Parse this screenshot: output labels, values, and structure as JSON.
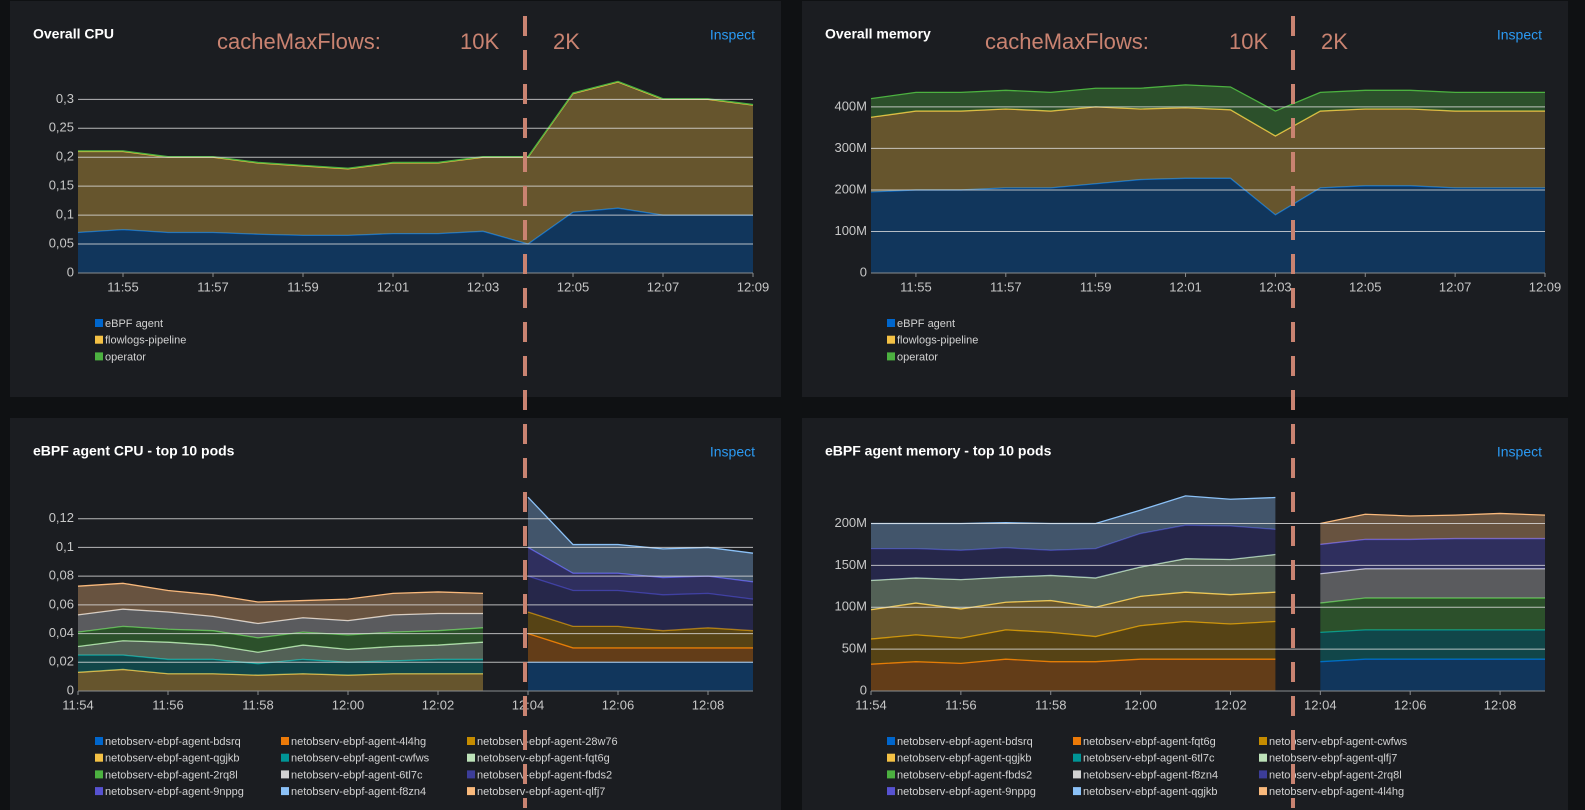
{
  "chart_data": [
    {
      "type": "area",
      "stacked": true,
      "grid": true,
      "title": "Overall CPU",
      "link": "Inspect",
      "annotation": {
        "label": "cacheMaxFlows:",
        "before": "10K",
        "after": "2K"
      },
      "x": [
        "11:54",
        "11:55",
        "11:56",
        "11:57",
        "11:58",
        "11:59",
        "12:00",
        "12:01",
        "12:02",
        "12:03",
        "12:04",
        "12:05",
        "12:06",
        "12:07",
        "12:08",
        "12:09"
      ],
      "xticks": [
        "11:55",
        "11:57",
        "11:59",
        "12:01",
        "12:03",
        "12:05",
        "12:07",
        "12:09"
      ],
      "ylim": [
        0,
        0.33
      ],
      "yticks": [
        0,
        {
          "value": 0.05,
          "label": "0,05"
        },
        {
          "value": 0.1,
          "label": "0,1"
        },
        {
          "value": 0.15,
          "label": "0,15"
        },
        {
          "value": 0.2,
          "label": "0,2"
        },
        {
          "value": 0.25,
          "label": "0,25"
        },
        {
          "value": 0.3,
          "label": "0,3"
        }
      ],
      "series": [
        {
          "name": "eBPF agent",
          "color": "#0066cc",
          "values": [
            0.07,
            0.075,
            0.07,
            0.07,
            0.067,
            0.065,
            0.065,
            0.068,
            0.068,
            0.072,
            0.05,
            0.105,
            0.112,
            0.1,
            0.1,
            0.1
          ]
        },
        {
          "name": "flowlogs-pipeline",
          "color": "#f4c145",
          "values": [
            0.14,
            0.135,
            0.13,
            0.13,
            0.123,
            0.12,
            0.115,
            0.122,
            0.122,
            0.128,
            0.15,
            0.205,
            0.218,
            0.2,
            0.2,
            0.19
          ]
        },
        {
          "name": "operator",
          "color": "#4cb140",
          "values": [
            0.001,
            0.001,
            0.001,
            0.001,
            0.001,
            0.001,
            0.001,
            0.001,
            0.001,
            0.001,
            0.001,
            0.001,
            0.001,
            0.001,
            0.001,
            0.001
          ]
        }
      ]
    },
    {
      "type": "area",
      "stacked": true,
      "grid": true,
      "title": "Overall memory",
      "link": "Inspect",
      "annotation": {
        "label": "cacheMaxFlows:",
        "before": "10K",
        "after": "2K"
      },
      "x": [
        "11:54",
        "11:55",
        "11:56",
        "11:57",
        "11:58",
        "11:59",
        "12:00",
        "12:01",
        "12:02",
        "12:03",
        "12:04",
        "12:05",
        "12:06",
        "12:07",
        "12:08",
        "12:09"
      ],
      "xticks": [
        "11:55",
        "11:57",
        "11:59",
        "12:01",
        "12:03",
        "12:05",
        "12:07",
        "12:09"
      ],
      "ylim": [
        0,
        460000000
      ],
      "yticks": [
        0,
        {
          "value": 100000000,
          "label": "100M"
        },
        {
          "value": 200000000,
          "label": "200M"
        },
        {
          "value": 300000000,
          "label": "300M"
        },
        {
          "value": 400000000,
          "label": "400M"
        }
      ],
      "series": [
        {
          "name": "eBPF agent",
          "color": "#0066cc",
          "values": [
            195000000,
            200000000,
            200000000,
            205000000,
            205000000,
            215000000,
            225000000,
            228000000,
            228000000,
            140000000,
            205000000,
            210000000,
            210000000,
            205000000,
            205000000,
            205000000
          ]
        },
        {
          "name": "flowlogs-pipeline",
          "color": "#f4c145",
          "values": [
            180000000,
            190000000,
            190000000,
            190000000,
            185000000,
            185000000,
            170000000,
            170000000,
            165000000,
            190000000,
            185000000,
            185000000,
            185000000,
            185000000,
            185000000,
            185000000
          ]
        },
        {
          "name": "operator",
          "color": "#4cb140",
          "values": [
            45000000,
            45000000,
            45000000,
            45000000,
            45000000,
            45000000,
            50000000,
            55000000,
            55000000,
            60000000,
            45000000,
            45000000,
            45000000,
            45000000,
            45000000,
            45000000
          ]
        }
      ]
    },
    {
      "type": "area",
      "stacked": true,
      "grid": true,
      "title": "eBPF agent CPU - top 10 pods",
      "link": "Inspect",
      "x": [
        "11:54",
        "11:55",
        "11:56",
        "11:57",
        "11:58",
        "11:59",
        "12:00",
        "12:01",
        "12:02",
        "12:03",
        "12:04",
        "12:05",
        "12:06",
        "12:07",
        "12:08",
        "12:09"
      ],
      "xticks": [
        "11:54",
        "11:56",
        "11:58",
        "12:00",
        "12:02",
        "12:04",
        "12:06",
        "12:08"
      ],
      "ylim": [
        0,
        0.14
      ],
      "yticks": [
        0,
        {
          "value": 0.02,
          "label": "0,02"
        },
        {
          "value": 0.04,
          "label": "0,04"
        },
        {
          "value": 0.06,
          "label": "0,06"
        },
        {
          "value": 0.08,
          "label": "0,08"
        },
        {
          "value": 0.1,
          "label": "0,1"
        },
        {
          "value": 0.12,
          "label": "0,12"
        }
      ],
      "series": [
        {
          "name": "netobserv-ebpf-agent-bdsrq",
          "color": "#0066cc",
          "values": [
            null,
            null,
            null,
            null,
            null,
            null,
            null,
            null,
            null,
            null,
            0.02,
            0.02,
            0.02,
            0.02,
            0.02,
            0.02
          ]
        },
        {
          "name": "netobserv-ebpf-agent-4l4hg",
          "color": "#ec7a08",
          "values": [
            null,
            null,
            null,
            null,
            null,
            null,
            null,
            null,
            null,
            null,
            0.02,
            0.01,
            0.01,
            0.01,
            0.01,
            0.01
          ]
        },
        {
          "name": "netobserv-ebpf-agent-28w76",
          "color": "#c58c00",
          "values": [
            null,
            null,
            null,
            null,
            null,
            null,
            null,
            null,
            null,
            null,
            0.015,
            0.015,
            0.015,
            0.012,
            0.014,
            0.012
          ]
        },
        {
          "name": "netobserv-ebpf-agent-qgjkb",
          "color": "#f4c145",
          "values": [
            0.013,
            0.015,
            0.012,
            0.012,
            0.011,
            0.012,
            0.011,
            0.012,
            0.012,
            0.012,
            null,
            null,
            null,
            null,
            null,
            null
          ]
        },
        {
          "name": "netobserv-ebpf-agent-cwfws",
          "color": "#009596",
          "values": [
            0.012,
            0.01,
            0.01,
            0.01,
            0.008,
            0.01,
            0.009,
            0.009,
            0.01,
            0.01,
            null,
            null,
            null,
            null,
            null,
            null
          ]
        },
        {
          "name": "netobserv-ebpf-agent-fqt6g",
          "color": "#bde2b9",
          "values": [
            0.006,
            0.01,
            0.012,
            0.01,
            0.008,
            0.01,
            0.009,
            0.01,
            0.01,
            0.012,
            null,
            null,
            null,
            null,
            null,
            null
          ]
        },
        {
          "name": "netobserv-ebpf-agent-2rq8l",
          "color": "#4cb140",
          "values": [
            0.01,
            0.01,
            0.009,
            0.01,
            0.01,
            0.009,
            0.01,
            0.01,
            0.01,
            0.01,
            null,
            null,
            null,
            null,
            null,
            null
          ]
        },
        {
          "name": "netobserv-ebpf-agent-6tl7c",
          "color": "#d2d2d2",
          "values": [
            0.012,
            0.012,
            0.012,
            0.01,
            0.01,
            0.01,
            0.01,
            0.012,
            0.012,
            0.01,
            null,
            null,
            null,
            null,
            null,
            null
          ]
        },
        {
          "name": "netobserv-ebpf-agent-fbds2",
          "color": "#3c3d99",
          "values": [
            null,
            null,
            null,
            null,
            null,
            null,
            null,
            null,
            null,
            null,
            0.025,
            0.025,
            0.025,
            0.025,
            0.024,
            0.022
          ]
        },
        {
          "name": "netobserv-ebpf-agent-9nppg",
          "color": "#5752d1",
          "values": [
            null,
            null,
            null,
            null,
            null,
            null,
            null,
            null,
            null,
            null,
            0.02,
            0.012,
            0.012,
            0.012,
            0.012,
            0.012
          ]
        },
        {
          "name": "netobserv-ebpf-agent-f8zn4",
          "color": "#8bc1f7",
          "values": [
            null,
            null,
            null,
            null,
            null,
            null,
            null,
            null,
            null,
            null,
            0.035,
            0.02,
            0.02,
            0.02,
            0.02,
            0.02
          ]
        },
        {
          "name": "netobserv-ebpf-agent-qlfj7",
          "color": "#f9b97c",
          "values": [
            0.02,
            0.018,
            0.015,
            0.015,
            0.015,
            0.012,
            0.015,
            0.015,
            0.015,
            0.014,
            null,
            null,
            null,
            null,
            null,
            null
          ]
        }
      ]
    },
    {
      "type": "area",
      "stacked": true,
      "grid": true,
      "title": "eBPF agent memory - top 10 pods",
      "link": "Inspect",
      "x": [
        "11:54",
        "11:55",
        "11:56",
        "11:57",
        "11:58",
        "11:59",
        "12:00",
        "12:01",
        "12:02",
        "12:03",
        "12:04",
        "12:05",
        "12:06",
        "12:07",
        "12:08",
        "12:09"
      ],
      "xticks": [
        "11:54",
        "11:56",
        "11:58",
        "12:00",
        "12:02",
        "12:04",
        "12:06",
        "12:08"
      ],
      "ylim": [
        0,
        240000000
      ],
      "yticks": [
        0,
        {
          "value": 50000000,
          "label": "50M"
        },
        {
          "value": 100000000,
          "label": "100M"
        },
        {
          "value": 150000000,
          "label": "150M"
        },
        {
          "value": 200000000,
          "label": "200M"
        }
      ],
      "series": [
        {
          "name": "netobserv-ebpf-agent-bdsrq",
          "color": "#0066cc",
          "values": [
            null,
            null,
            null,
            null,
            null,
            null,
            null,
            null,
            null,
            null,
            35000000,
            38000000,
            38000000,
            38000000,
            38000000,
            38000000
          ]
        },
        {
          "name": "netobserv-ebpf-agent-fqt6g",
          "color": "#ec7a08",
          "values": [
            32000000,
            35000000,
            33000000,
            38000000,
            35000000,
            35000000,
            38000000,
            38000000,
            38000000,
            38000000,
            null,
            null,
            null,
            null,
            null,
            null
          ]
        },
        {
          "name": "netobserv-ebpf-agent-cwfws",
          "color": "#c58c00",
          "values": [
            30000000,
            32000000,
            30000000,
            35000000,
            35000000,
            30000000,
            40000000,
            45000000,
            42000000,
            45000000,
            null,
            null,
            null,
            null,
            null,
            null
          ]
        },
        {
          "name": "netobserv-ebpf-agent-qgjkb",
          "color": "#f4c145",
          "values": [
            35000000,
            38000000,
            35000000,
            33000000,
            38000000,
            35000000,
            35000000,
            35000000,
            35000000,
            35000000,
            null,
            null,
            null,
            null,
            null,
            null
          ]
        },
        {
          "name": "netobserv-ebpf-agent-6tl7c",
          "color": "#009596",
          "values": [
            null,
            null,
            null,
            null,
            null,
            null,
            null,
            null,
            null,
            null,
            35000000,
            35000000,
            35000000,
            35000000,
            35000000,
            35000000
          ]
        },
        {
          "name": "netobserv-ebpf-agent-qlfj7",
          "color": "#bde2b9",
          "values": [
            35000000,
            30000000,
            35000000,
            30000000,
            30000000,
            35000000,
            35000000,
            40000000,
            42000000,
            45000000,
            null,
            null,
            null,
            null,
            null,
            null
          ]
        },
        {
          "name": "netobserv-ebpf-agent-fbds2",
          "color": "#4cb140",
          "values": [
            null,
            null,
            null,
            null,
            null,
            null,
            null,
            null,
            null,
            null,
            35000000,
            38000000,
            38000000,
            38000000,
            38000000,
            38000000
          ]
        },
        {
          "name": "netobserv-ebpf-agent-f8zn4",
          "color": "#d2d2d2",
          "values": [
            null,
            null,
            null,
            null,
            null,
            null,
            null,
            null,
            null,
            null,
            35000000,
            35000000,
            35000000,
            35000000,
            35000000,
            35000000
          ]
        },
        {
          "name": "netobserv-ebpf-agent-2rq8l",
          "color": "#3c3d99",
          "values": [
            38000000,
            35000000,
            35000000,
            35000000,
            30000000,
            35000000,
            40000000,
            40000000,
            40000000,
            30000000,
            null,
            null,
            null,
            null,
            null,
            null
          ]
        },
        {
          "name": "netobserv-ebpf-agent-9nppg",
          "color": "#5752d1",
          "values": [
            null,
            null,
            null,
            null,
            null,
            null,
            null,
            null,
            null,
            null,
            35000000,
            35000000,
            35000000,
            36000000,
            36000000,
            36000000
          ]
        },
        {
          "name": "netobserv-ebpf-agent-qgjkb",
          "color": "#8bc1f7",
          "values": [
            30000000,
            30000000,
            32000000,
            30000000,
            32000000,
            30000000,
            28000000,
            35000000,
            32000000,
            38000000,
            null,
            null,
            null,
            null,
            null,
            null
          ]
        },
        {
          "name": "netobserv-ebpf-agent-4l4hg",
          "color": "#f9b97c",
          "values": [
            null,
            null,
            null,
            null,
            null,
            null,
            null,
            null,
            null,
            null,
            25000000,
            30000000,
            28000000,
            28000000,
            30000000,
            28000000
          ]
        }
      ]
    }
  ]
}
